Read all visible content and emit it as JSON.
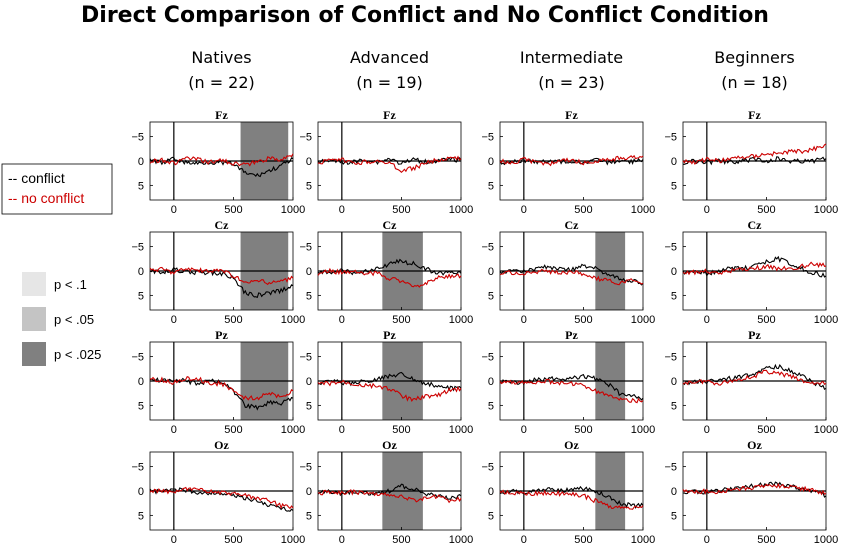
{
  "chart_data": {
    "type": "line",
    "title": "Direct Comparison of Conflict and No Conflict Condition",
    "groups": [
      {
        "name": "Natives",
        "n_label": "(n = 22)"
      },
      {
        "name": "Advanced",
        "n_label": "(n = 19)"
      },
      {
        "name": "Intermediate",
        "n_label": "(n = 23)"
      },
      {
        "name": "Beginners",
        "n_label": "(n = 18)"
      }
    ],
    "channels": [
      "Fz",
      "Cz",
      "Pz",
      "Oz"
    ],
    "x_ticks": [
      0,
      500,
      1000
    ],
    "y_ticks": [
      -5,
      0,
      5
    ],
    "x_range": [
      -200,
      1000
    ],
    "y_range": [
      -8,
      8
    ],
    "y_inverted": true,
    "series": [
      {
        "name": "-- conflict",
        "color": "#000000"
      },
      {
        "name": "-- no conflict",
        "color": "#cc0000"
      }
    ],
    "significance_legend": [
      {
        "label": "p < .1",
        "color": "#e6e6e6"
      },
      {
        "label": "p < .05",
        "color": "#c4c4c4"
      },
      {
        "label": "p < .025",
        "color": "#808080"
      }
    ],
    "significance_windows": [
      {
        "group": "Natives",
        "channel": "Fz",
        "start_ms": 560,
        "end_ms": 960,
        "level": "p < .025"
      },
      {
        "group": "Natives",
        "channel": "Cz",
        "start_ms": 560,
        "end_ms": 960,
        "level": "p < .025"
      },
      {
        "group": "Natives",
        "channel": "Pz",
        "start_ms": 560,
        "end_ms": 960,
        "level": "p < .025"
      },
      {
        "group": "Advanced",
        "channel": "Cz",
        "start_ms": 340,
        "end_ms": 680,
        "level": "p < .025"
      },
      {
        "group": "Advanced",
        "channel": "Pz",
        "start_ms": 340,
        "end_ms": 680,
        "level": "p < .025"
      },
      {
        "group": "Advanced",
        "channel": "Oz",
        "start_ms": 340,
        "end_ms": 680,
        "level": "p < .025"
      },
      {
        "group": "Intermediate",
        "channel": "Cz",
        "start_ms": 600,
        "end_ms": 850,
        "level": "p < .025"
      },
      {
        "group": "Intermediate",
        "channel": "Pz",
        "start_ms": 600,
        "end_ms": 850,
        "level": "p < .025"
      },
      {
        "group": "Intermediate",
        "channel": "Oz",
        "start_ms": 600,
        "end_ms": 850,
        "level": "p < .025"
      }
    ],
    "waveforms": {
      "x_ms": [
        -200,
        -100,
        0,
        100,
        200,
        300,
        400,
        500,
        600,
        700,
        800,
        900,
        1000
      ],
      "Natives": {
        "Fz": {
          "conflict": [
            -0.3,
            0.4,
            -0.5,
            0.3,
            0.5,
            0.2,
            0.4,
            0.6,
            2.5,
            3.0,
            2.0,
            1.0,
            -0.5
          ],
          "no_conflict": [
            0.2,
            -0.3,
            0.5,
            -0.6,
            -0.3,
            0.3,
            -0.2,
            0.5,
            0.8,
            0.2,
            -0.5,
            -0.3,
            -1.5
          ]
        },
        "Cz": {
          "conflict": [
            0.0,
            0.2,
            -0.3,
            0.2,
            0.3,
            0.3,
            0.5,
            1.5,
            4.5,
            5.0,
            4.5,
            4.0,
            3.0
          ],
          "no_conflict": [
            -0.2,
            -0.4,
            0.3,
            -0.5,
            -0.2,
            0.2,
            -0.3,
            1.0,
            2.5,
            2.0,
            2.5,
            2.0,
            1.5
          ]
        },
        "Pz": {
          "conflict": [
            -0.5,
            0.0,
            -0.3,
            0.0,
            0.5,
            0.0,
            0.3,
            2.0,
            5.0,
            5.5,
            4.5,
            4.5,
            3.5
          ],
          "no_conflict": [
            -0.3,
            -0.2,
            0.4,
            -0.6,
            -0.5,
            0.5,
            0.5,
            2.0,
            3.5,
            3.5,
            2.5,
            3.5,
            2.0
          ]
        },
        "Oz": {
          "conflict": [
            0.0,
            0.2,
            -0.4,
            0.0,
            0.3,
            0.4,
            0.5,
            1.0,
            1.5,
            2.0,
            3.0,
            3.5,
            4.0
          ],
          "no_conflict": [
            0.2,
            -0.2,
            0.4,
            -0.3,
            -0.2,
            0.0,
            0.3,
            0.5,
            1.0,
            1.5,
            2.0,
            3.0,
            3.5
          ]
        }
      },
      "Advanced": {
        "Fz": {
          "conflict": [
            0.2,
            -0.2,
            0.3,
            0.2,
            -0.3,
            0.2,
            -0.5,
            0.5,
            -0.3,
            0.2,
            0.0,
            -0.3,
            -0.2
          ],
          "no_conflict": [
            0.3,
            0.0,
            -0.2,
            0.4,
            0.2,
            0.0,
            0.5,
            2.0,
            1.5,
            0.5,
            -0.2,
            -0.5,
            -0.5
          ]
        },
        "Cz": {
          "conflict": [
            0.3,
            0.2,
            0.0,
            0.3,
            0.0,
            -0.5,
            -1.5,
            -2.0,
            -1.5,
            -0.5,
            0.5,
            0.5,
            0.5
          ],
          "no_conflict": [
            0.5,
            0.0,
            0.3,
            0.0,
            0.5,
            0.5,
            1.5,
            2.0,
            3.5,
            2.5,
            1.5,
            1.0,
            1.0
          ]
        },
        "Pz": {
          "conflict": [
            0.5,
            0.0,
            0.3,
            0.5,
            0.0,
            -0.3,
            -1.0,
            -1.5,
            -0.5,
            0.5,
            1.0,
            1.5,
            1.5
          ],
          "no_conflict": [
            0.6,
            0.5,
            0.2,
            0.6,
            1.0,
            1.0,
            1.5,
            3.0,
            4.0,
            3.0,
            3.0,
            2.0,
            1.5
          ]
        },
        "Oz": {
          "conflict": [
            0.3,
            0.2,
            0.5,
            0.2,
            0.5,
            0.3,
            0.0,
            -1.0,
            -0.5,
            0.5,
            1.0,
            1.5,
            1.0
          ],
          "no_conflict": [
            0.5,
            0.2,
            0.3,
            0.2,
            0.6,
            0.5,
            1.0,
            1.0,
            2.0,
            1.5,
            1.0,
            2.0,
            1.5
          ]
        }
      },
      "Intermediate": {
        "Fz": {
          "conflict": [
            0.3,
            0.2,
            -0.2,
            0.3,
            -0.1,
            0.2,
            0.0,
            0.3,
            -0.2,
            0.2,
            0.0,
            0.2,
            -0.3
          ],
          "no_conflict": [
            0.0,
            0.5,
            -0.3,
            0.2,
            0.6,
            0.2,
            -0.3,
            0.5,
            0.2,
            -0.5,
            -0.5,
            -0.8,
            -1.0
          ]
        },
        "Cz": {
          "conflict": [
            0.3,
            0.0,
            0.2,
            -0.5,
            -0.8,
            -0.5,
            -0.3,
            -1.0,
            -0.5,
            0.5,
            1.5,
            2.0,
            2.5
          ],
          "no_conflict": [
            0.5,
            0.3,
            0.6,
            0.2,
            0.0,
            0.5,
            0.3,
            0.5,
            1.5,
            2.0,
            2.5,
            2.0,
            2.5
          ]
        },
        "Pz": {
          "conflict": [
            0.3,
            0.0,
            0.5,
            -0.3,
            -0.5,
            -0.3,
            -0.5,
            -1.0,
            -0.5,
            0.5,
            2.5,
            3.0,
            3.5
          ],
          "no_conflict": [
            0.5,
            0.2,
            0.5,
            0.3,
            0.0,
            0.5,
            0.5,
            1.0,
            2.0,
            3.0,
            3.5,
            4.0,
            4.0
          ]
        },
        "Oz": {
          "conflict": [
            0.3,
            0.0,
            0.5,
            0.0,
            -0.3,
            0.0,
            -0.3,
            -0.5,
            0.0,
            1.0,
            2.5,
            3.0,
            3.0
          ],
          "no_conflict": [
            0.3,
            0.3,
            0.5,
            0.5,
            0.3,
            0.5,
            0.5,
            1.0,
            2.0,
            3.0,
            3.5,
            3.5,
            3.0
          ]
        }
      },
      "Beginners": {
        "Fz": {
          "conflict": [
            0.3,
            0.0,
            0.3,
            0.0,
            0.2,
            0.0,
            -0.3,
            0.0,
            -0.5,
            0.0,
            0.0,
            0.0,
            -0.5
          ],
          "no_conflict": [
            0.0,
            0.2,
            -0.3,
            0.0,
            -0.5,
            -0.8,
            -1.0,
            -1.5,
            -1.5,
            -2.0,
            -2.0,
            -2.5,
            -3.5
          ]
        },
        "Cz": {
          "conflict": [
            0.3,
            0.0,
            0.5,
            0.0,
            -0.5,
            -0.5,
            -1.0,
            -2.0,
            -2.5,
            -1.5,
            -0.5,
            0.5,
            1.0
          ],
          "no_conflict": [
            0.2,
            0.3,
            0.0,
            0.5,
            0.0,
            -0.3,
            -0.5,
            -1.0,
            -0.5,
            -0.5,
            -1.0,
            -1.5,
            -1.0
          ]
        },
        "Pz": {
          "conflict": [
            0.5,
            0.0,
            0.3,
            -0.3,
            -0.5,
            -1.0,
            -1.5,
            -2.5,
            -3.0,
            -2.0,
            -1.0,
            0.5,
            1.5
          ],
          "no_conflict": [
            0.3,
            0.2,
            0.0,
            0.5,
            0.0,
            -0.5,
            -1.0,
            -2.0,
            -1.5,
            -1.0,
            0.0,
            0.5,
            0.5
          ]
        },
        "Oz": {
          "conflict": [
            0.3,
            0.0,
            0.3,
            0.0,
            -0.5,
            -0.8,
            -1.0,
            -1.5,
            -1.5,
            -1.0,
            -0.3,
            0.0,
            1.0
          ],
          "no_conflict": [
            0.0,
            0.3,
            0.0,
            0.3,
            -0.3,
            -0.5,
            -0.8,
            -1.0,
            -1.0,
            -0.8,
            -0.5,
            0.0,
            0.5
          ]
        }
      }
    }
  }
}
